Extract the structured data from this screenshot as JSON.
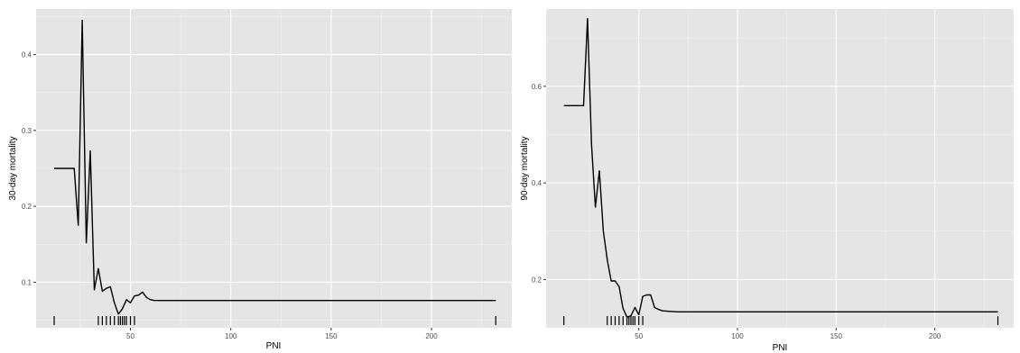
{
  "chart_data": [
    {
      "type": "line",
      "xlabel": "PNI",
      "ylabel": "30-day mortality",
      "xlim": [
        3,
        240
      ],
      "ylim": [
        0.04,
        0.46
      ],
      "x_ticks": [
        50,
        100,
        150,
        200
      ],
      "y_ticks": [
        0.1,
        0.2,
        0.3,
        0.4
      ],
      "grid": true,
      "series": [
        {
          "x": [
            12,
            22,
            24,
            26,
            28,
            30,
            32,
            34,
            36,
            38,
            40,
            42,
            44,
            46,
            48,
            50,
            52,
            54,
            56,
            58,
            60,
            62,
            66,
            232
          ],
          "y": [
            0.25,
            0.25,
            0.175,
            0.445,
            0.152,
            0.273,
            0.09,
            0.118,
            0.088,
            0.092,
            0.094,
            0.073,
            0.058,
            0.065,
            0.077,
            0.073,
            0.082,
            0.083,
            0.087,
            0.08,
            0.077,
            0.076,
            0.076,
            0.076
          ]
        }
      ],
      "rug": [
        12,
        34,
        36,
        38,
        40,
        42,
        44,
        45,
        46,
        47,
        48,
        50,
        52,
        232
      ]
    },
    {
      "type": "line",
      "xlabel": "PNI",
      "ylabel": "90-day mortality",
      "xlim": [
        3,
        240
      ],
      "ylim": [
        0.1,
        0.76
      ],
      "x_ticks": [
        50,
        100,
        150,
        200
      ],
      "y_ticks": [
        0.2,
        0.4,
        0.6
      ],
      "grid": true,
      "series": [
        {
          "x": [
            12,
            22,
            24,
            26,
            28,
            30,
            32,
            34,
            36,
            38,
            40,
            42,
            44,
            46,
            48,
            50,
            52,
            54,
            56,
            58,
            60,
            62,
            66,
            70,
            232
          ],
          "y": [
            0.56,
            0.56,
            0.74,
            0.48,
            0.35,
            0.425,
            0.3,
            0.24,
            0.197,
            0.197,
            0.185,
            0.14,
            0.122,
            0.125,
            0.142,
            0.127,
            0.165,
            0.168,
            0.168,
            0.142,
            0.138,
            0.135,
            0.134,
            0.133,
            0.133
          ]
        }
      ],
      "rug": [
        12,
        34,
        36,
        38,
        40,
        42,
        44,
        45,
        46,
        47,
        48,
        50,
        52,
        232
      ]
    }
  ]
}
